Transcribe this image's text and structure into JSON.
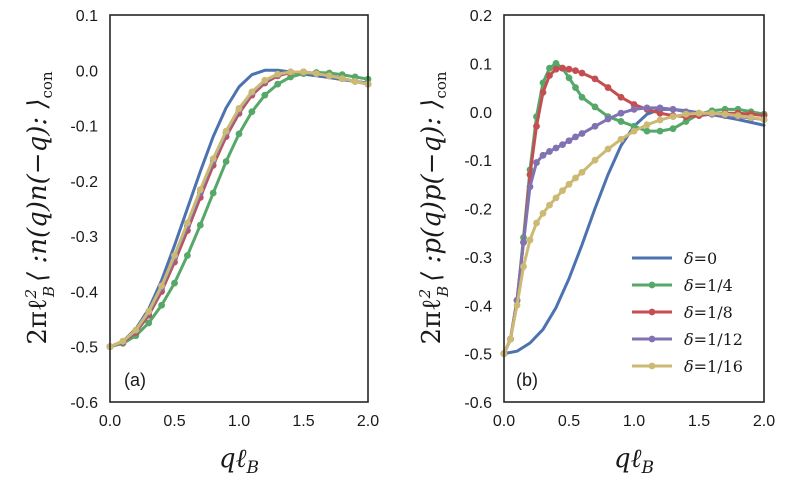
{
  "chart_data": [
    {
      "type": "line",
      "panel_label": "(a)",
      "xlabel": "qℓ_B",
      "xlabel_main": "qℓ",
      "xlabel_sub": "B",
      "ylabel": "2πℓ_B² ⟨ :n(q)n(−q): ⟩_con",
      "ylabel_main": "2πℓ",
      "ylabel_sup": "2",
      "ylabel_sub": "B",
      "ylabel_body": "⟨ :n(q)n(−q): ⟩",
      "ylabel_tail": "con",
      "xlim": [
        0,
        2.0
      ],
      "ylim": [
        -0.6,
        0.1
      ],
      "xticks": [
        0.0,
        0.5,
        1.0,
        1.5,
        2.0
      ],
      "xtick_labels": [
        "0.0",
        "0.5",
        "1.0",
        "1.5",
        "2.0"
      ],
      "yticks": [
        -0.6,
        -0.5,
        -0.4,
        -0.3,
        -0.2,
        -0.1,
        0.0,
        0.1
      ],
      "ytick_labels": [
        "-0.6",
        "-0.5",
        "-0.4",
        "-0.3",
        "-0.2",
        "-0.1",
        "0.0",
        "0.1"
      ],
      "series": [
        {
          "name": "δ=0",
          "color": "#4c72b0",
          "markers": false,
          "x": [
            0,
            0.1,
            0.2,
            0.3,
            0.4,
            0.5,
            0.6,
            0.7,
            0.8,
            0.9,
            1.0,
            1.1,
            1.2,
            1.3,
            1.4,
            1.5,
            1.6,
            1.7,
            1.8,
            1.9,
            2.0
          ],
          "y": [
            -0.5,
            -0.49,
            -0.468,
            -0.432,
            -0.38,
            -0.317,
            -0.25,
            -0.183,
            -0.12,
            -0.068,
            -0.03,
            -0.008,
            0.0,
            0.0,
            -0.003,
            -0.007,
            -0.01,
            -0.013,
            -0.017,
            -0.02,
            -0.023
          ]
        },
        {
          "name": "δ=1/4",
          "color": "#55a868",
          "markers": true,
          "x": [
            0,
            0.1,
            0.2,
            0.3,
            0.4,
            0.5,
            0.6,
            0.7,
            0.8,
            0.9,
            1.0,
            1.1,
            1.2,
            1.3,
            1.4,
            1.5,
            1.6,
            1.7,
            1.8,
            1.9,
            2.0
          ],
          "y": [
            -0.5,
            -0.494,
            -0.48,
            -0.457,
            -0.425,
            -0.385,
            -0.335,
            -0.28,
            -0.222,
            -0.165,
            -0.115,
            -0.075,
            -0.045,
            -0.025,
            -0.012,
            -0.006,
            -0.004,
            -0.005,
            -0.008,
            -0.012,
            -0.016
          ]
        },
        {
          "name": "δ=1/8",
          "color": "#c44e52",
          "markers": true,
          "x": [
            0,
            0.1,
            0.2,
            0.3,
            0.4,
            0.5,
            0.6,
            0.7,
            0.8,
            0.9,
            1.0,
            1.1,
            1.2,
            1.3,
            1.4,
            1.5,
            1.6,
            1.7,
            1.8,
            1.9,
            2.0
          ],
          "y": [
            -0.5,
            -0.492,
            -0.474,
            -0.443,
            -0.4,
            -0.347,
            -0.29,
            -0.23,
            -0.172,
            -0.12,
            -0.078,
            -0.045,
            -0.023,
            -0.01,
            -0.004,
            -0.003,
            -0.006,
            -0.01,
            -0.015,
            -0.02,
            -0.025
          ]
        },
        {
          "name": "δ=1/12",
          "color": "#8172b2",
          "markers": true,
          "x": [
            0,
            0.1,
            0.2,
            0.3,
            0.4,
            0.5,
            0.6,
            0.7,
            0.8,
            0.9,
            1.0,
            1.1,
            1.2,
            1.3,
            1.4,
            1.5,
            1.6,
            1.7,
            1.8,
            1.9,
            2.0
          ],
          "y": [
            -0.5,
            -0.491,
            -0.471,
            -0.439,
            -0.394,
            -0.34,
            -0.282,
            -0.222,
            -0.165,
            -0.114,
            -0.073,
            -0.041,
            -0.02,
            -0.008,
            -0.003,
            -0.003,
            -0.006,
            -0.01,
            -0.015,
            -0.02,
            -0.025
          ]
        },
        {
          "name": "δ=1/16",
          "color": "#ccb974",
          "markers": true,
          "x": [
            0,
            0.1,
            0.2,
            0.3,
            0.4,
            0.5,
            0.6,
            0.7,
            0.8,
            0.9,
            1.0,
            1.1,
            1.2,
            1.3,
            1.4,
            1.5,
            1.6,
            1.7,
            1.8,
            1.9,
            2.0
          ],
          "y": [
            -0.5,
            -0.49,
            -0.47,
            -0.436,
            -0.39,
            -0.335,
            -0.276,
            -0.216,
            -0.16,
            -0.11,
            -0.069,
            -0.039,
            -0.018,
            -0.007,
            -0.003,
            -0.003,
            -0.006,
            -0.01,
            -0.015,
            -0.02,
            -0.025
          ]
        }
      ]
    },
    {
      "type": "line",
      "panel_label": "(b)",
      "xlabel": "qℓ_B",
      "xlabel_main": "qℓ",
      "xlabel_sub": "B",
      "ylabel": "2πℓ_B² ⟨ :p(q)p(−q): ⟩_con",
      "ylabel_main": "2πℓ",
      "ylabel_sup": "2",
      "ylabel_sub": "B",
      "ylabel_body": "⟨ :p(q)p(−q): ⟩",
      "ylabel_tail": "con",
      "legend_position": "lower-right",
      "xlim": [
        0,
        2.0
      ],
      "ylim": [
        -0.6,
        0.2
      ],
      "xticks": [
        0.0,
        0.5,
        1.0,
        1.5,
        2.0
      ],
      "xtick_labels": [
        "0.0",
        "0.5",
        "1.0",
        "1.5",
        "2.0"
      ],
      "yticks": [
        -0.6,
        -0.5,
        -0.4,
        -0.3,
        -0.2,
        -0.1,
        0.0,
        0.1,
        0.2
      ],
      "ytick_labels": [
        "-0.6",
        "-0.5",
        "-0.4",
        "-0.3",
        "-0.2",
        "-0.1",
        "0.0",
        "0.1",
        "0.2"
      ],
      "series": [
        {
          "name": "δ=0",
          "label_greek": "δ",
          "label_value": "=0",
          "color": "#4c72b0",
          "markers": false,
          "x": [
            0,
            0.1,
            0.2,
            0.3,
            0.4,
            0.5,
            0.6,
            0.7,
            0.8,
            0.9,
            1.0,
            1.1,
            1.2,
            1.3,
            1.4,
            1.5,
            1.6,
            1.7,
            1.8,
            1.9,
            2.0
          ],
          "y": [
            -0.5,
            -0.495,
            -0.478,
            -0.45,
            -0.405,
            -0.345,
            -0.275,
            -0.2,
            -0.13,
            -0.07,
            -0.03,
            -0.005,
            0.005,
            0.005,
            0.002,
            -0.002,
            -0.006,
            -0.011,
            -0.016,
            -0.022,
            -0.028
          ]
        },
        {
          "name": "δ=1/4",
          "label_greek": "δ",
          "label_value": "=1/4",
          "color": "#55a868",
          "markers": true,
          "x": [
            0,
            0.05,
            0.1,
            0.15,
            0.2,
            0.25,
            0.3,
            0.35,
            0.4,
            0.45,
            0.5,
            0.55,
            0.6,
            0.7,
            0.8,
            0.9,
            1.0,
            1.1,
            1.2,
            1.3,
            1.4,
            1.5,
            1.6,
            1.7,
            1.8,
            1.9,
            2.0
          ],
          "y": [
            -0.5,
            -0.47,
            -0.39,
            -0.26,
            -0.12,
            -0.01,
            0.06,
            0.09,
            0.1,
            0.09,
            0.07,
            0.05,
            0.03,
            0.01,
            -0.01,
            -0.02,
            -0.03,
            -0.04,
            -0.04,
            -0.035,
            -0.02,
            -0.005,
            0.002,
            0.005,
            0.005,
            0.0,
            -0.005
          ]
        },
        {
          "name": "δ=1/8",
          "label_greek": "δ",
          "label_value": "=1/8",
          "color": "#c44e52",
          "markers": true,
          "x": [
            0,
            0.05,
            0.1,
            0.15,
            0.2,
            0.25,
            0.3,
            0.35,
            0.4,
            0.45,
            0.5,
            0.55,
            0.6,
            0.7,
            0.8,
            0.9,
            1.0,
            1.1,
            1.2,
            1.3,
            1.4,
            1.5,
            1.6,
            1.7,
            1.8,
            1.9,
            2.0
          ],
          "y": [
            -0.5,
            -0.47,
            -0.39,
            -0.27,
            -0.13,
            -0.03,
            0.04,
            0.075,
            0.088,
            0.09,
            0.088,
            0.085,
            0.08,
            0.068,
            0.05,
            0.03,
            0.015,
            0.005,
            -0.003,
            -0.008,
            -0.01,
            -0.008,
            -0.005,
            -0.003,
            -0.003,
            -0.005,
            -0.008
          ]
        },
        {
          "name": "δ=1/12",
          "label_greek": "δ",
          "label_value": "=1/12",
          "color": "#8172b2",
          "markers": true,
          "x": [
            0,
            0.05,
            0.1,
            0.15,
            0.2,
            0.25,
            0.3,
            0.35,
            0.4,
            0.45,
            0.5,
            0.55,
            0.6,
            0.7,
            0.8,
            0.9,
            1.0,
            1.1,
            1.2,
            1.3,
            1.4,
            1.5,
            1.6,
            1.7,
            1.8,
            1.9,
            2.0
          ],
          "y": [
            -0.5,
            -0.47,
            -0.39,
            -0.27,
            -0.155,
            -0.105,
            -0.09,
            -0.082,
            -0.075,
            -0.068,
            -0.06,
            -0.052,
            -0.045,
            -0.03,
            -0.015,
            -0.003,
            0.005,
            0.008,
            0.008,
            0.005,
            0.0,
            -0.003,
            -0.005,
            -0.008,
            -0.01,
            -0.013,
            -0.016
          ]
        },
        {
          "name": "δ=1/16",
          "label_greek": "δ",
          "label_value": "=1/16",
          "color": "#ccb974",
          "markers": true,
          "x": [
            0,
            0.05,
            0.1,
            0.15,
            0.2,
            0.25,
            0.3,
            0.35,
            0.4,
            0.45,
            0.5,
            0.55,
            0.6,
            0.7,
            0.8,
            0.9,
            1.0,
            1.1,
            1.2,
            1.3,
            1.4,
            1.5,
            1.6,
            1.7,
            1.8,
            1.9,
            2.0
          ],
          "y": [
            -0.5,
            -0.47,
            -0.4,
            -0.32,
            -0.265,
            -0.23,
            -0.21,
            -0.193,
            -0.178,
            -0.163,
            -0.15,
            -0.137,
            -0.125,
            -0.1,
            -0.077,
            -0.057,
            -0.04,
            -0.027,
            -0.017,
            -0.01,
            -0.005,
            -0.003,
            -0.003,
            -0.005,
            -0.008,
            -0.012,
            -0.016
          ]
        }
      ]
    }
  ]
}
